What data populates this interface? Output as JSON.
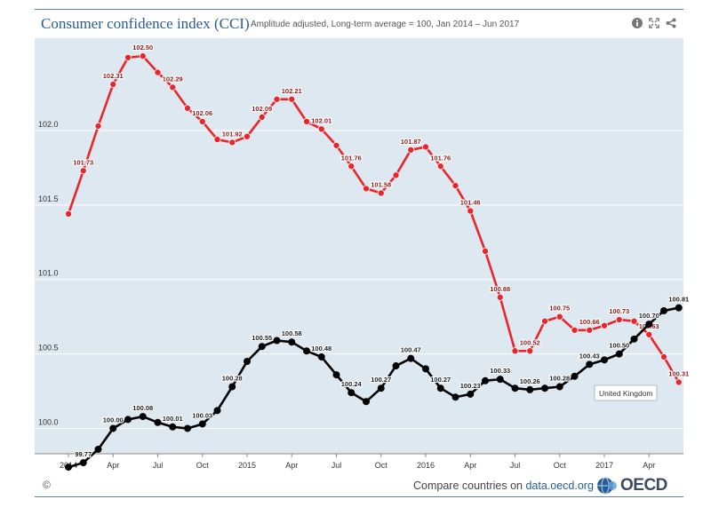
{
  "header": {
    "title": "Consumer confidence index (CCI)",
    "subtitle": "Amplitude adjusted, Long-term average = 100, Jan 2014 – Jun 2017",
    "tools": [
      {
        "name": "info-icon"
      },
      {
        "name": "fullscreen-icon"
      },
      {
        "name": "share-icon"
      }
    ]
  },
  "footer": {
    "copyright": "©",
    "compare_text": "Compare countries on",
    "compare_link": "data.oecd.org",
    "logo_text": "OECD"
  },
  "chart_data": {
    "type": "line",
    "x_tick_labels": [
      "2014",
      "Apr",
      "Jul",
      "Oct",
      "2015",
      "Apr",
      "Jul",
      "Oct",
      "2016",
      "Apr",
      "Jul",
      "Oct",
      "2017",
      "Apr"
    ],
    "y_ticks": [
      100.0,
      100.5,
      101.0,
      101.5,
      102.0
    ],
    "y_tick_labels": [
      "100.0",
      "100.5",
      "101.0",
      "101.5",
      "102.0"
    ],
    "ylim": [
      99.83,
      102.62
    ],
    "grid": true,
    "tooltip": "United Kingdom",
    "colors": {
      "red_series": "#e8262b",
      "black_series": "#000000",
      "plot_bg": "#dde8f0",
      "grid": "#ffffff"
    },
    "series": [
      {
        "color": "#e8262b",
        "values": [
          101.44,
          101.73,
          102.03,
          102.31,
          102.49,
          102.5,
          102.39,
          102.29,
          102.15,
          102.06,
          101.94,
          101.92,
          101.96,
          102.09,
          102.21,
          102.21,
          102.06,
          102.01,
          101.9,
          101.76,
          101.61,
          101.58,
          101.7,
          101.87,
          101.89,
          101.76,
          101.63,
          101.46,
          101.19,
          100.88,
          100.52,
          100.52,
          100.72,
          100.75,
          100.66,
          100.66,
          100.69,
          100.73,
          100.72,
          100.63,
          100.48,
          100.31
        ],
        "data_labels": [
          {
            "index": 1,
            "text": "101.73"
          },
          {
            "index": 3,
            "text": "102.31"
          },
          {
            "index": 5,
            "text": "102.50"
          },
          {
            "index": 7,
            "text": "102.29"
          },
          {
            "index": 9,
            "text": "102.06"
          },
          {
            "index": 11,
            "text": "101.92"
          },
          {
            "index": 13,
            "text": "102.09"
          },
          {
            "index": 15,
            "text": "102.21"
          },
          {
            "index": 17,
            "text": "102.01"
          },
          {
            "index": 19,
            "text": "101.76"
          },
          {
            "index": 21,
            "text": "101.58"
          },
          {
            "index": 23,
            "text": "101.87"
          },
          {
            "index": 25,
            "text": "101.76"
          },
          {
            "index": 27,
            "text": "101.46"
          },
          {
            "index": 29,
            "text": "100.88"
          },
          {
            "index": 31,
            "text": "100.52"
          },
          {
            "index": 33,
            "text": "100.75"
          },
          {
            "index": 35,
            "text": "100.66"
          },
          {
            "index": 37,
            "text": "100.73"
          },
          {
            "index": 39,
            "text": "100.63"
          },
          {
            "index": 41,
            "text": "100.31"
          }
        ]
      },
      {
        "color": "#000000",
        "values": [
          99.74,
          99.77,
          99.86,
          100.0,
          100.06,
          100.08,
          100.04,
          100.01,
          100.0,
          100.03,
          100.12,
          100.28,
          100.45,
          100.55,
          100.59,
          100.58,
          100.52,
          100.48,
          100.36,
          100.24,
          100.18,
          100.27,
          100.42,
          100.47,
          100.4,
          100.27,
          100.21,
          100.23,
          100.32,
          100.33,
          100.27,
          100.26,
          100.27,
          100.28,
          100.35,
          100.43,
          100.46,
          100.5,
          100.6,
          100.7,
          100.79,
          100.81
        ],
        "data_labels": [
          {
            "index": 1,
            "text": "99.77"
          },
          {
            "index": 3,
            "text": "100.00"
          },
          {
            "index": 5,
            "text": "100.08"
          },
          {
            "index": 7,
            "text": "100.01"
          },
          {
            "index": 9,
            "text": "100.03"
          },
          {
            "index": 11,
            "text": "100.28"
          },
          {
            "index": 13,
            "text": "100.55"
          },
          {
            "index": 15,
            "text": "100.58"
          },
          {
            "index": 17,
            "text": "100.48"
          },
          {
            "index": 19,
            "text": "100.24"
          },
          {
            "index": 21,
            "text": "100.27"
          },
          {
            "index": 23,
            "text": "100.47"
          },
          {
            "index": 25,
            "text": "100.27"
          },
          {
            "index": 27,
            "text": "100.23"
          },
          {
            "index": 29,
            "text": "100.33"
          },
          {
            "index": 31,
            "text": "100.26"
          },
          {
            "index": 33,
            "text": "100.28"
          },
          {
            "index": 35,
            "text": "100.43"
          },
          {
            "index": 37,
            "text": "100.50"
          },
          {
            "index": 39,
            "text": "100.70"
          },
          {
            "index": 41,
            "text": "100.81"
          }
        ]
      }
    ]
  }
}
